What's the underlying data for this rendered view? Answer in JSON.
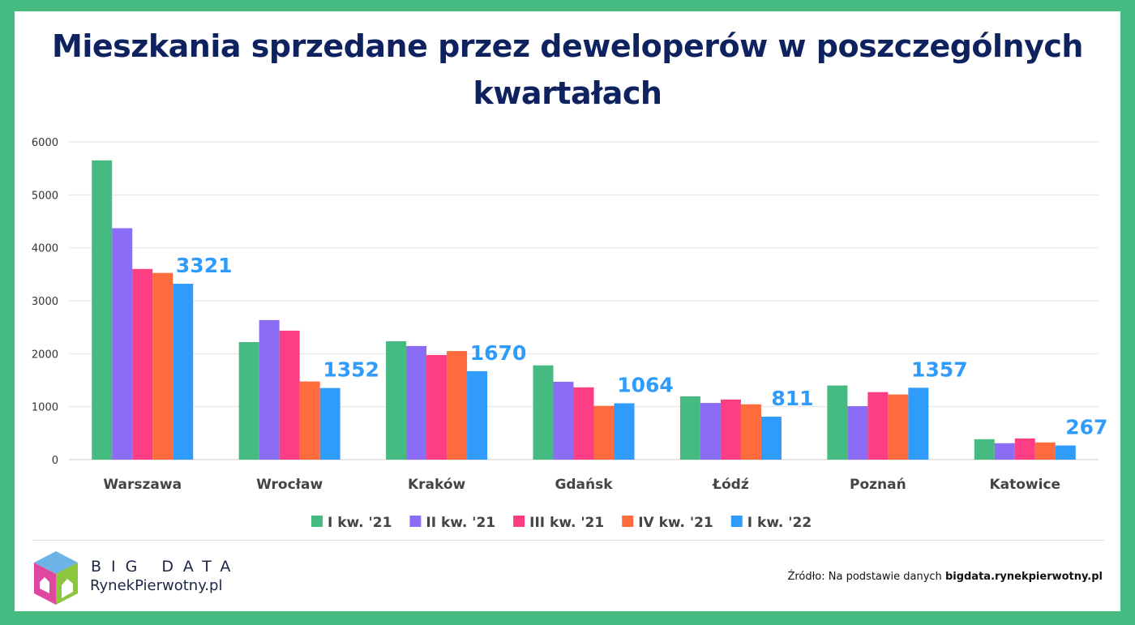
{
  "title": "Mieszkania sprzedane przez deweloperów w poszczególnych kwartałach",
  "chart_data": {
    "type": "bar",
    "categories": [
      "Warszawa",
      "Wrocław",
      "Kraków",
      "Gdańsk",
      "Łódź",
      "Poznań",
      "Katowice"
    ],
    "series": [
      {
        "name": "I kw. '21",
        "color": "#45bb82",
        "values": [
          5650,
          2220,
          2235,
          1780,
          1195,
          1400,
          385
        ]
      },
      {
        "name": "II kw. '21",
        "color": "#8a6cf5",
        "values": [
          4370,
          2635,
          2145,
          1470,
          1070,
          1010,
          310
        ]
      },
      {
        "name": "III kw. '21",
        "color": "#fd3d84",
        "values": [
          3600,
          2435,
          1975,
          1365,
          1135,
          1275,
          400
        ]
      },
      {
        "name": "IV kw. '21",
        "color": "#ff6b3d",
        "values": [
          3525,
          1475,
          2050,
          1015,
          1045,
          1230,
          325
        ]
      },
      {
        "name": "I kw. '22",
        "color": "#2f9bfb",
        "values": [
          3321,
          1352,
          1670,
          1064,
          811,
          1357,
          267
        ]
      }
    ],
    "data_labels": [
      "3321",
      "1352",
      "1670",
      "1064",
      "811",
      "1357",
      "267"
    ],
    "ylim": [
      0,
      6000
    ],
    "yticks": [
      "0",
      "1000",
      "2000",
      "3000",
      "4000",
      "5000",
      "6000"
    ],
    "grid": true,
    "legend": "bottom"
  },
  "footer": {
    "brand_top": "BIG DATA",
    "brand_bottom": "RynekPierwotny.pl",
    "source_prefix": "Źródło: Na podstawie danych ",
    "source_bold": "bigdata.rynekpierwotny.pl"
  }
}
